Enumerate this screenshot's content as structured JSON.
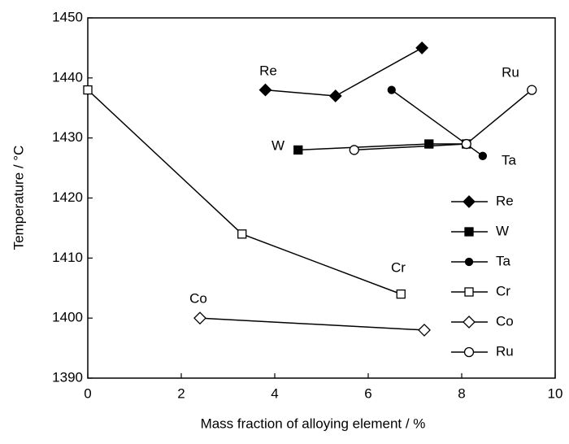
{
  "chart_data": {
    "type": "line",
    "xlabel": "Mass fraction of alloying element / %",
    "ylabel": "Temperature / °C",
    "xlim": [
      0,
      10
    ],
    "xticks": [
      0,
      2,
      4,
      6,
      8,
      10
    ],
    "ylim": [
      1390,
      1450
    ],
    "yticks": [
      1390,
      1400,
      1410,
      1420,
      1430,
      1440,
      1450
    ],
    "legend": "lower right",
    "series": [
      {
        "name": "Re",
        "color": "#000000",
        "marker": "diamond-filled",
        "x": [
          3.8,
          5.3,
          7.15
        ],
        "values": [
          1438,
          1437,
          1445
        ]
      },
      {
        "name": "W",
        "color": "#000000",
        "marker": "square-filled",
        "x": [
          4.5,
          7.3,
          8.1
        ],
        "values": [
          1428,
          1429,
          1429
        ]
      },
      {
        "name": "Ta",
        "color": "#000000",
        "marker": "circle-filled",
        "x": [
          6.5,
          8.45
        ],
        "values": [
          1438,
          1427
        ]
      },
      {
        "name": "Cr",
        "color": "#000000",
        "marker": "square-open",
        "x": [
          0,
          3.3,
          6.7
        ],
        "values": [
          1438,
          1414,
          1404
        ]
      },
      {
        "name": "Co",
        "color": "#000000",
        "marker": "diamond-open",
        "x": [
          2.4,
          7.2
        ],
        "values": [
          1400,
          1398
        ]
      },
      {
        "name": "Ru",
        "color": "#000000",
        "marker": "circle-open",
        "x": [
          5.7,
          8.1,
          9.5
        ],
        "values": [
          1428,
          1429,
          1438
        ]
      }
    ]
  }
}
